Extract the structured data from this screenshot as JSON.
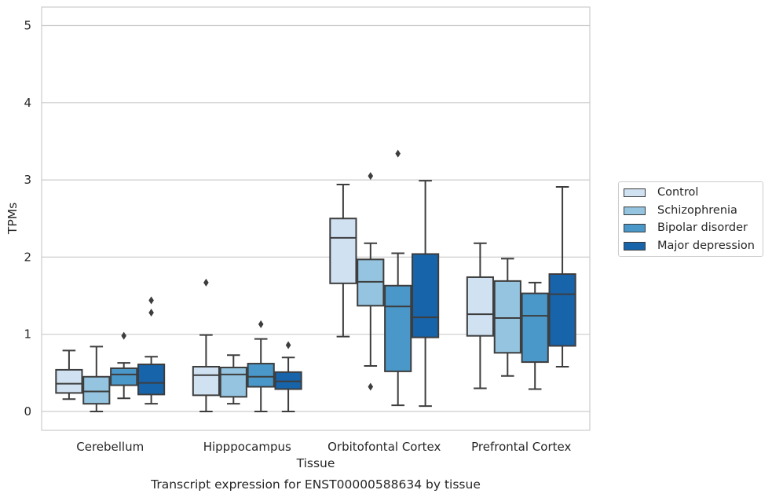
{
  "chart_data": {
    "type": "box",
    "caption": "Transcript expression for ENST00000588634 by tissue",
    "xlabel": "Tissue",
    "ylabel": "TPMs",
    "ylim": [
      -0.25,
      5.25
    ],
    "yticks": [
      0,
      1,
      2,
      3,
      4,
      5
    ],
    "grid": true,
    "legend_position": "right",
    "categories": [
      "Cerebellum",
      "Hipppocampus",
      "Orbitofontal Cortex",
      "Prefrontal Cortex"
    ],
    "series": [
      {
        "name": "Control",
        "color": "#d0e1f2",
        "boxes": [
          {
            "min": 0.16,
            "q1": 0.24,
            "median": 0.36,
            "q3": 0.54,
            "max": 0.79,
            "outliers": []
          },
          {
            "min": 0.0,
            "q1": 0.21,
            "median": 0.47,
            "q3": 0.58,
            "max": 0.99,
            "outliers": [
              1.67
            ]
          },
          {
            "min": 0.97,
            "q1": 1.66,
            "median": 2.25,
            "q3": 2.5,
            "max": 2.94,
            "outliers": []
          },
          {
            "min": 0.3,
            "q1": 0.98,
            "median": 1.26,
            "q3": 1.74,
            "max": 2.18,
            "outliers": []
          }
        ]
      },
      {
        "name": "Schizophrenia",
        "color": "#94c4df",
        "boxes": [
          {
            "min": 0.0,
            "q1": 0.1,
            "median": 0.26,
            "q3": 0.45,
            "max": 0.84,
            "outliers": []
          },
          {
            "min": 0.1,
            "q1": 0.19,
            "median": 0.48,
            "q3": 0.57,
            "max": 0.73,
            "outliers": []
          },
          {
            "min": 0.59,
            "q1": 1.37,
            "median": 1.68,
            "q3": 1.97,
            "max": 2.18,
            "outliers": [
              3.05,
              0.32
            ]
          },
          {
            "min": 0.46,
            "q1": 0.76,
            "median": 1.21,
            "q3": 1.69,
            "max": 1.98,
            "outliers": []
          }
        ]
      },
      {
        "name": "Bipolar disorder",
        "color": "#4a98c9",
        "boxes": [
          {
            "min": 0.17,
            "q1": 0.34,
            "median": 0.48,
            "q3": 0.56,
            "max": 0.63,
            "outliers": [
              0.98
            ]
          },
          {
            "min": 0.0,
            "q1": 0.32,
            "median": 0.45,
            "q3": 0.62,
            "max": 0.94,
            "outliers": [
              1.13
            ]
          },
          {
            "min": 0.08,
            "q1": 0.52,
            "median": 1.36,
            "q3": 1.63,
            "max": 2.05,
            "outliers": [
              3.34
            ]
          },
          {
            "min": 0.29,
            "q1": 0.64,
            "median": 1.24,
            "q3": 1.53,
            "max": 1.67,
            "outliers": []
          }
        ]
      },
      {
        "name": "Major depression",
        "color": "#1764ab",
        "boxes": [
          {
            "min": 0.1,
            "q1": 0.22,
            "median": 0.37,
            "q3": 0.61,
            "max": 0.71,
            "outliers": [
              1.28,
              1.44
            ]
          },
          {
            "min": 0.0,
            "q1": 0.29,
            "median": 0.39,
            "q3": 0.51,
            "max": 0.7,
            "outliers": [
              0.86
            ]
          },
          {
            "min": 0.07,
            "q1": 0.96,
            "median": 1.22,
            "q3": 2.04,
            "max": 2.99,
            "outliers": []
          },
          {
            "min": 0.58,
            "q1": 0.85,
            "median": 1.52,
            "q3": 1.78,
            "max": 2.91,
            "outliers": []
          }
        ]
      }
    ]
  }
}
